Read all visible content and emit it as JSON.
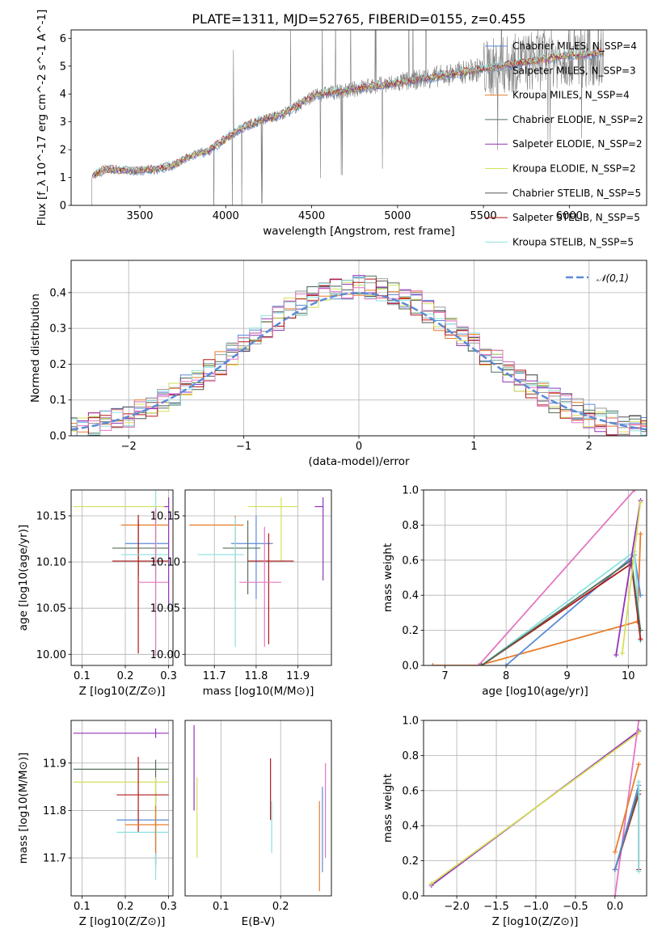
{
  "chart_data": [
    {
      "type": "line",
      "title": "PLATE=1311, MJD=52765, FIBERID=0155, z=0.455",
      "xlabel": "wavelength [Angstrom, rest frame]",
      "ylabel": "Flux [f_λ 10^-17 erg cm^-2 s^-1 A^-1]",
      "xlim": [
        3100,
        6450
      ],
      "ylim": [
        0,
        6.3
      ],
      "xticks": [
        3500,
        4000,
        4500,
        5000,
        5500,
        6000
      ],
      "yticks": [
        0,
        1,
        2,
        3,
        4,
        5,
        6
      ],
      "legend_position": "top-right",
      "series": [
        {
          "name": "Chabrier MILES, N_SSP=4",
          "color": "#5b8bd6"
        },
        {
          "name": "Salpeter MILES, N_SSP=3",
          "color": "#999999"
        },
        {
          "name": "Kroupa MILES, N_SSP=4",
          "color": "#e87d2b"
        },
        {
          "name": "Chabrier ELODIE, N_SSP=2",
          "color": "#55705a"
        },
        {
          "name": "Salpeter ELODIE, N_SSP=2",
          "color": "#9333b8"
        },
        {
          "name": "Kroupa ELODIE, N_SSP=2",
          "color": "#d4e05a"
        },
        {
          "name": "Chabrier STELIB, N_SSP=5",
          "color": "#555555"
        },
        {
          "name": "Salpeter STELIB, N_SSP=5",
          "color": "#b01818"
        },
        {
          "name": "Kroupa STELIB, N_SSP=5",
          "color": "#8ee0e0"
        }
      ],
      "data_trend": {
        "x": [
          3220,
          3300,
          3400,
          3500,
          3600,
          3700,
          3800,
          3900,
          4000,
          4100,
          4200,
          4300,
          4400,
          4500,
          4600,
          4700,
          4800,
          4900,
          5000,
          5100,
          5200,
          5300,
          5400,
          5500,
          5600,
          5700,
          5800,
          5900,
          6000,
          6100,
          6200
        ],
        "y": [
          1.05,
          1.3,
          1.25,
          1.25,
          1.3,
          1.45,
          1.8,
          1.95,
          2.4,
          2.8,
          3.05,
          3.2,
          3.5,
          3.9,
          4.05,
          4.1,
          4.25,
          4.3,
          4.4,
          4.5,
          4.6,
          4.7,
          4.8,
          4.9,
          5.0,
          5.1,
          5.2,
          5.3,
          5.4,
          5.4,
          5.5
        ]
      }
    },
    {
      "type": "bar",
      "xlabel": "(data-model)/error",
      "ylabel": "Normed distribution",
      "xlim": [
        -2.5,
        2.5
      ],
      "ylim": [
        0,
        0.49
      ],
      "xticks": [
        -2,
        -1,
        0,
        1,
        2
      ],
      "yticks": [
        0.0,
        0.1,
        0.2,
        0.3,
        0.4
      ],
      "reference_curve": {
        "name": "𝒩(0,1)",
        "color": "#5b8bd6",
        "style": "dashed"
      },
      "histogram_bin_width": 0.1,
      "histogram_peak": 0.45
    },
    {
      "type": "scatter",
      "xlabel": "Z [log10(Z/Z⊙)]",
      "ylabel": "age  [log10(age/yr)]",
      "xlim": [
        0.075,
        0.31
      ],
      "ylim": [
        9.988,
        10.178
      ],
      "xticks": [
        0.1,
        0.2,
        0.3
      ],
      "yticks": [
        10.0,
        10.05,
        10.1,
        10.15
      ],
      "points": [
        {
          "x": 0.27,
          "y": 10.12,
          "xerr": [
            0.07,
            0.03
          ],
          "yerr": [
            0.04,
            0.04
          ],
          "color": "#5b8bd6"
        },
        {
          "x": 0.27,
          "y": 10.14,
          "xerr": [
            0.08,
            0.03
          ],
          "yerr": [
            0.05,
            0.02
          ],
          "color": "#e87d2b"
        },
        {
          "x": 0.27,
          "y": 10.16,
          "xerr": [
            0.19,
            0.03
          ],
          "yerr": [
            0.11,
            0.01
          ],
          "color": "#d4e05a"
        },
        {
          "x": 0.23,
          "y": 10.115,
          "xerr": [
            0.06,
            0.07
          ],
          "yerr": [
            0.03,
            0.03
          ],
          "color": "#55705a"
        },
        {
          "x": 0.23,
          "y": 10.101,
          "xerr": [
            0.06,
            0.07
          ],
          "yerr": [
            0.1,
            0.05
          ],
          "color": "#b01818"
        },
        {
          "x": 0.27,
          "y": 10.108,
          "xerr": [
            0.08,
            0.03
          ],
          "yerr": [
            0.11,
            0.07
          ],
          "color": "#8ee0e0"
        },
        {
          "x": 0.27,
          "y": 10.078,
          "xerr": [
            0.04,
            0.03
          ],
          "yerr": [
            0.08,
            0.08
          ],
          "color": "#e377c2"
        },
        {
          "x": 0.3,
          "y": 10.16,
          "xerr": [
            0.01,
            0.0
          ],
          "yerr": [
            0.11,
            0.01
          ],
          "color": "#9333b8"
        }
      ]
    },
    {
      "type": "scatter",
      "xlabel": "mass [log10(M/M⊙)]",
      "ylabel": "",
      "xlim": [
        11.63,
        11.98
      ],
      "ylim": [
        9.988,
        10.178
      ],
      "xticks": [
        11.7,
        11.8,
        11.9
      ],
      "yticks": [
        10.0,
        10.05,
        10.1,
        10.15
      ],
      "points": [
        {
          "x": 11.8,
          "y": 10.12,
          "xerr": [
            0.06,
            0.04
          ],
          "yerr": [
            0.06,
            0.03
          ],
          "color": "#5b8bd6"
        },
        {
          "x": 11.75,
          "y": 10.14,
          "xerr": [
            0.11,
            0.02
          ],
          "yerr": [
            0.08,
            0.01
          ],
          "color": "#e87d2b"
        },
        {
          "x": 11.86,
          "y": 10.16,
          "xerr": [
            0.08,
            0.04
          ],
          "yerr": [
            0.06,
            0.01
          ],
          "color": "#d4e05a"
        },
        {
          "x": 11.78,
          "y": 10.115,
          "xerr": [
            0.06,
            0.03
          ],
          "yerr": [
            0.05,
            0.03
          ],
          "color": "#55705a"
        },
        {
          "x": 11.83,
          "y": 10.101,
          "xerr": [
            0.05,
            0.06
          ],
          "yerr": [
            0.09,
            0.03
          ],
          "color": "#b01818"
        },
        {
          "x": 11.75,
          "y": 10.108,
          "xerr": [
            0.09,
            0.02
          ],
          "yerr": [
            0.1,
            0.04
          ],
          "color": "#8ee0e0"
        },
        {
          "x": 11.82,
          "y": 10.078,
          "xerr": [
            0.06,
            0.04
          ],
          "yerr": [
            0.07,
            0.06
          ],
          "color": "#e377c2"
        },
        {
          "x": 11.96,
          "y": 10.16,
          "xerr": [
            0.02,
            0.0
          ],
          "yerr": [
            0.08,
            0.01
          ],
          "color": "#9333b8"
        }
      ]
    },
    {
      "type": "line",
      "xlabel": "age  [log10(age/yr)]",
      "ylabel": "mass weight",
      "xlim": [
        6.65,
        10.3
      ],
      "ylim": [
        0,
        1
      ],
      "xticks": [
        7,
        8,
        9,
        10
      ],
      "yticks": [
        0.0,
        0.2,
        0.4,
        0.6,
        0.8,
        1.0
      ],
      "series": [
        {
          "color": "#e87d2b",
          "x": [
            6.8,
            7.55,
            10.15,
            10.2
          ],
          "y": [
            0.0,
            0.0,
            0.25,
            0.75
          ]
        },
        {
          "color": "#5b8bd6",
          "x": [
            8.0,
            10.1,
            10.2
          ],
          "y": [
            0.0,
            0.63,
            0.4
          ]
        },
        {
          "color": "#e377c2",
          "x": [
            7.55,
            10.1
          ],
          "y": [
            0.0,
            1.0
          ]
        },
        {
          "color": "#8ee0e0",
          "x": [
            7.6,
            10.1,
            10.2
          ],
          "y": [
            0.0,
            0.65,
            0.14
          ]
        },
        {
          "color": "#b01818",
          "x": [
            7.6,
            10.05,
            10.2
          ],
          "y": [
            0.0,
            0.58,
            0.15
          ]
        },
        {
          "color": "#55705a",
          "x": [
            7.6,
            10.05,
            10.2
          ],
          "y": [
            0.0,
            0.6,
            0.2
          ]
        },
        {
          "color": "#9333b8",
          "x": [
            9.8,
            10.2
          ],
          "y": [
            0.06,
            0.94
          ]
        },
        {
          "color": "#d4e05a",
          "x": [
            9.9,
            10.2
          ],
          "y": [
            0.07,
            0.93
          ]
        }
      ]
    },
    {
      "type": "scatter",
      "xlabel": "Z [log10(Z/Z⊙)]",
      "ylabel": "mass [log10(M/M⊙)]",
      "xlim": [
        0.075,
        0.31
      ],
      "ylim": [
        11.62,
        11.99
      ],
      "xticks": [
        0.1,
        0.2,
        0.3
      ],
      "yticks": [
        11.7,
        11.8,
        11.9
      ],
      "points": [
        {
          "x": 0.27,
          "y": 11.78,
          "xerr": [
            0.09,
            0.03
          ],
          "yerr": [
            0.1,
            0.06
          ],
          "color": "#5b8bd6"
        },
        {
          "x": 0.27,
          "y": 11.887,
          "xerr": [
            0.19,
            0.03
          ],
          "yerr": [
            0.2,
            0.02
          ],
          "color": "#55705a"
        },
        {
          "x": 0.27,
          "y": 11.86,
          "xerr": [
            0.19,
            0.03
          ],
          "yerr": [
            0.13,
            0.01
          ],
          "color": "#d4e05a"
        },
        {
          "x": 0.23,
          "y": 11.833,
          "xerr": [
            0.05,
            0.07
          ],
          "yerr": [
            0.08,
            0.08
          ],
          "color": "#b01818"
        },
        {
          "x": 0.27,
          "y": 11.754,
          "xerr": [
            0.09,
            0.03
          ],
          "yerr": [
            0.1,
            0.03
          ],
          "color": "#8ee0e0"
        },
        {
          "x": 0.27,
          "y": 11.77,
          "xerr": [
            0.07,
            0.03
          ],
          "yerr": [
            0.06,
            0.04
          ],
          "color": "#e87d2b"
        },
        {
          "x": 0.27,
          "y": 11.963,
          "xerr": [
            0.19,
            0.03
          ],
          "yerr": [
            0.01,
            0.01
          ],
          "color": "#9333b8"
        }
      ]
    },
    {
      "type": "scatter",
      "xlabel": "E(B-V)",
      "ylabel": "",
      "xlim": [
        0.04,
        0.285
      ],
      "ylim": [
        11.62,
        11.99
      ],
      "xticks": [
        0.1,
        0.2
      ],
      "points": [
        {
          "x": 0.055,
          "y": 11.89,
          "yerr": [
            0.09,
            0.09
          ],
          "color": "#9333b8"
        },
        {
          "x": 0.06,
          "y": 11.8,
          "yerr": [
            0.1,
            0.07
          ],
          "color": "#d4e05a"
        },
        {
          "x": 0.183,
          "y": 11.84,
          "yerr": [
            0.06,
            0.07
          ],
          "color": "#b01818"
        },
        {
          "x": 0.185,
          "y": 11.78,
          "yerr": [
            0.07,
            0.04
          ],
          "color": "#8ee0e0"
        },
        {
          "x": 0.265,
          "y": 11.78,
          "yerr": [
            0.15,
            0.04
          ],
          "color": "#e87d2b"
        },
        {
          "x": 0.27,
          "y": 11.78,
          "yerr": [
            0.11,
            0.07
          ],
          "color": "#5b8bd6"
        },
        {
          "x": 0.275,
          "y": 11.8,
          "yerr": [
            0.1,
            0.1
          ],
          "color": "#e377c2"
        }
      ]
    },
    {
      "type": "line",
      "xlabel": "Z [log10(Z/Z⊙)]",
      "ylabel": "mass weight",
      "xlim": [
        -2.42,
        0.4
      ],
      "ylim": [
        0,
        1
      ],
      "xticks": [
        -2.0,
        -1.5,
        -1.0,
        -0.5,
        0.0
      ],
      "yticks": [
        0.0,
        0.2,
        0.4,
        0.6,
        0.8,
        1.0
      ],
      "series": [
        {
          "color": "#9333b8",
          "x": [
            -2.32,
            0.3
          ],
          "y": [
            0.06,
            0.94
          ]
        },
        {
          "color": "#d4e05a",
          "x": [
            -2.32,
            0.3
          ],
          "y": [
            0.07,
            0.93
          ]
        },
        {
          "color": "#e377c2",
          "x": [
            0.0,
            0.3
          ],
          "y": [
            0.0,
            1.0
          ]
        },
        {
          "color": "#e87d2b",
          "x": [
            0.0,
            0.3
          ],
          "y": [
            0.25,
            0.75
          ]
        },
        {
          "color": "#b01818",
          "x": [
            0.0,
            0.3,
            0.3
          ],
          "y": [
            0.15,
            0.58,
            0.15
          ]
        },
        {
          "color": "#55705a",
          "x": [
            0.0,
            0.3
          ],
          "y": [
            0.15,
            0.6
          ]
        },
        {
          "color": "#5b8bd6",
          "x": [
            0.0,
            0.3
          ],
          "y": [
            0.15,
            0.63
          ]
        },
        {
          "color": "#8ee0e0",
          "x": [
            0.3,
            0.3
          ],
          "y": [
            0.14,
            0.65
          ]
        }
      ]
    }
  ]
}
